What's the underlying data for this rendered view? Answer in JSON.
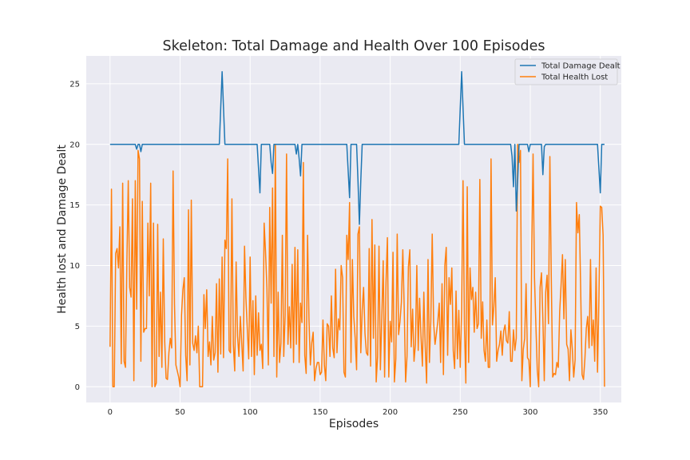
{
  "chart_data": {
    "type": "line",
    "title": "Skeleton: Total Damage and Health Over 100 Episodes",
    "xlabel": "Episodes",
    "ylabel": "Health lost and Damage Dealt",
    "xlim": [
      -17,
      365
    ],
    "ylim": [
      -1.3,
      27.3
    ],
    "xticks": [
      0,
      50,
      100,
      150,
      200,
      250,
      300,
      350
    ],
    "yticks": [
      0,
      5,
      10,
      15,
      20,
      25
    ],
    "grid": true,
    "legend_position": "top-right",
    "series": [
      {
        "name": "Total Damage Dealt",
        "color": "#1f77b4",
        "x": [
          0,
          18,
          19,
          20,
          21,
          22,
          23,
          78,
          79,
          80,
          81,
          82,
          105,
          106,
          107,
          108,
          114,
          115,
          116,
          117,
          118,
          132,
          133,
          134,
          135,
          136,
          137,
          169,
          170,
          171,
          172,
          176,
          177,
          178,
          179,
          180,
          249,
          250,
          251,
          252,
          253,
          286,
          287,
          288,
          289,
          290,
          291,
          292,
          298,
          299,
          300,
          301,
          308,
          309,
          310,
          311,
          348,
          349,
          350,
          351,
          353
        ],
        "y": [
          20,
          20,
          19.6,
          20,
          20,
          19.4,
          20,
          20,
          23,
          26,
          23,
          20,
          20,
          18,
          16,
          20,
          20,
          18.5,
          17.6,
          20,
          20,
          20,
          19.2,
          20,
          18.8,
          17.4,
          20,
          20,
          17.8,
          15.6,
          20,
          20,
          17,
          13.4,
          17,
          20,
          20,
          23,
          26,
          23,
          20,
          20,
          19,
          16.5,
          20,
          14.5,
          17,
          20,
          20,
          19.4,
          20,
          20,
          20,
          17.5,
          19.8,
          20,
          20,
          18,
          16,
          20,
          20
        ]
      },
      {
        "name": "Total Health Lost",
        "color": "#ff7f0e",
        "x": [
          0,
          1,
          2,
          3,
          4,
          5,
          6,
          7,
          8,
          9,
          10,
          11,
          12,
          13,
          14,
          15,
          16,
          17,
          18,
          19,
          20,
          21,
          22,
          23,
          24,
          25,
          26,
          27,
          28,
          29,
          30,
          31,
          32,
          33,
          34,
          35,
          36,
          37,
          38,
          39,
          40,
          41,
          42,
          43,
          44,
          45,
          46,
          47,
          48,
          49,
          50,
          51,
          52,
          53,
          54,
          55,
          56,
          57,
          58,
          59,
          60,
          61,
          62,
          63,
          64,
          65,
          66,
          67,
          68,
          69,
          70,
          71,
          72,
          73,
          74,
          75,
          76,
          77,
          78,
          79,
          80,
          81,
          82,
          83,
          84,
          85,
          86,
          87,
          88,
          89,
          90,
          91,
          92,
          93,
          94,
          95,
          96,
          97,
          98,
          99,
          100,
          101,
          102,
          103,
          104,
          105,
          106,
          107,
          108,
          109,
          110,
          111,
          112,
          113,
          114,
          115,
          116,
          117,
          118,
          119,
          120,
          121,
          122,
          123,
          124,
          125,
          126,
          127,
          128,
          129,
          130,
          131,
          132,
          133,
          134,
          135,
          136,
          137,
          138,
          139,
          140,
          141,
          142,
          143,
          144,
          145,
          146,
          147,
          148,
          149,
          150,
          151,
          152,
          153,
          154,
          155,
          156,
          157,
          158,
          159,
          160,
          161,
          162,
          163,
          164,
          165,
          166,
          167,
          168,
          169,
          170,
          171,
          172,
          173,
          174,
          175,
          176,
          177,
          178,
          179,
          180,
          181,
          182,
          183,
          184,
          185,
          186,
          187,
          188,
          189,
          190,
          191,
          192,
          193,
          194,
          195,
          196,
          197,
          198,
          199,
          200,
          201,
          202,
          203,
          204,
          205,
          206,
          207,
          208,
          209,
          210,
          211,
          212,
          213,
          214,
          215,
          216,
          217,
          218,
          219,
          220,
          221,
          222,
          223,
          224,
          225,
          226,
          227,
          228,
          229,
          230,
          231,
          232,
          233,
          234,
          235,
          236,
          237,
          238,
          239,
          240,
          241,
          242,
          243,
          244,
          245,
          246,
          247,
          248,
          249,
          250,
          251,
          252,
          253,
          254,
          255,
          256,
          257,
          258,
          259,
          260,
          261,
          262,
          263,
          264,
          265,
          266,
          267,
          268,
          269,
          270,
          271,
          272,
          273,
          274,
          275,
          276,
          277,
          278,
          279,
          280,
          281,
          282,
          283,
          284,
          285,
          286,
          287,
          288,
          289,
          290,
          291,
          292,
          293,
          294,
          295,
          296,
          297,
          298,
          299,
          300,
          301,
          302,
          303,
          304,
          305,
          306,
          307,
          308,
          309,
          310,
          311,
          312,
          313,
          314,
          315,
          316,
          317,
          318,
          319,
          320,
          321,
          322,
          323,
          324,
          325,
          326,
          327,
          328,
          329,
          330,
          331,
          332,
          333,
          334,
          335,
          336,
          337,
          338,
          339,
          340,
          341,
          342,
          343,
          344,
          345,
          346,
          347,
          348,
          349,
          350,
          351,
          352,
          353
        ],
        "y": [
          3.3,
          16.3,
          0,
          0,
          11,
          11.4,
          9.8,
          13.2,
          1.9,
          16.8,
          2.1,
          1.6,
          10.2,
          17,
          8.2,
          7.4,
          15.5,
          0.5,
          17,
          6.4,
          19.5,
          18.8,
          2.1,
          15.3,
          4.5,
          4.8,
          4.8,
          13.5,
          7.5,
          16.8,
          0,
          13.5,
          0,
          0.3,
          13.4,
          2.5,
          7.8,
          1.6,
          12.2,
          3.8,
          0.7,
          0.6,
          2.8,
          4,
          3.2,
          17.8,
          6.8,
          1.8,
          1.3,
          0.8,
          0,
          5.9,
          8,
          9,
          2.6,
          0.5,
          14.6,
          1.8,
          15.4,
          3.6,
          3,
          4.2,
          2.8,
          5,
          0,
          0,
          0,
          7.6,
          4.8,
          8,
          2.5,
          3.7,
          1.8,
          5.8,
          2.2,
          2.8,
          8.5,
          1.2,
          8.9,
          2.7,
          10.7,
          2.4,
          12.1,
          11.4,
          18.8,
          3,
          2.8,
          15.5,
          3.5,
          1.3,
          10.3,
          4.2,
          2.5,
          5.8,
          3.6,
          1.3,
          11.6,
          7.3,
          4.7,
          2.3,
          10.7,
          2.5,
          7.1,
          1,
          7.5,
          2.6,
          6.1,
          3,
          3.5,
          1.5,
          13.5,
          11.1,
          8.1,
          1.8,
          14.8,
          6.9,
          16.4,
          2.5,
          20,
          0.8,
          7.8,
          2,
          3.6,
          12.5,
          2.5,
          5.9,
          19.2,
          3.5,
          6.6,
          3.2,
          10.1,
          2,
          11.5,
          3.5,
          11.3,
          2,
          6.9,
          5.3,
          18.5,
          2.6,
          1.1,
          12.5,
          5.6,
          1.8,
          3.6,
          4.5,
          0.5,
          1.5,
          2,
          2,
          1,
          1.2,
          5.5,
          1.8,
          0.5,
          5.2,
          5,
          2.5,
          7.5,
          3.2,
          2.4,
          9.7,
          2.8,
          5.6,
          4.7,
          10,
          9,
          1.2,
          0.8,
          12.5,
          10.5,
          15.2,
          2,
          10.5,
          5.8,
          4,
          1.4,
          12.6,
          13.2,
          2.8,
          6.3,
          8.2,
          4.4,
          2.8,
          2.6,
          11.4,
          1.7,
          13.8,
          4,
          11.7,
          0.4,
          2.5,
          11.6,
          1.4,
          5.7,
          10.4,
          0.8,
          8.6,
          12.3,
          0.8,
          5.4,
          3.7,
          11.1,
          0.4,
          2.3,
          12.6,
          4.3,
          5.4,
          7,
          11.3,
          6.5,
          0.4,
          2.5,
          9.9,
          11.3,
          3.3,
          6.4,
          2.1,
          3.5,
          10,
          3,
          7.3,
          4.1,
          1.7,
          7.8,
          3.3,
          0.3,
          10.5,
          2,
          5.5,
          12.6,
          5.3,
          3.5,
          4.4,
          5.4,
          6.9,
          2,
          8.5,
          1,
          10,
          11.5,
          2.6,
          9,
          6.8,
          9.8,
          3,
          1.5,
          7.9,
          2.3,
          6.3,
          1.6,
          6.4,
          17,
          5,
          0.3,
          16.5,
          2,
          9.8,
          7.2,
          8.2,
          4.5,
          7.8,
          4.8,
          5.2,
          17.1,
          4,
          7,
          3,
          2.1,
          5.5,
          1.6,
          1.6,
          18.8,
          5.1,
          6.6,
          9,
          2.1,
          3,
          3.5,
          4.6,
          2.6,
          4.6,
          5.1,
          3.8,
          3.6,
          6.2,
          2.1,
          2.1,
          4.7,
          3,
          4,
          20,
          18.5,
          19.5,
          0.5,
          3.1,
          4,
          8.5,
          2.4,
          2.2,
          0,
          10.8,
          19.2,
          9,
          5.1,
          1.4,
          0,
          8.2,
          9.4,
          5.6,
          0.5,
          7.8,
          9.2,
          5.2,
          19,
          9,
          0.8,
          1.1,
          1,
          2,
          1.6,
          6.2,
          8.4,
          10.9,
          5.6,
          10.5,
          3.5,
          3.1,
          0.5,
          4.7,
          3.1,
          0.8,
          2.2,
          15.2,
          12.7,
          14.2,
          7.9,
          1,
          0.6,
          2.3,
          4.8,
          5.8,
          3.2,
          10.5,
          3.4,
          5.5,
          2.1,
          9.8,
          1.2,
          7.2,
          14.9,
          14.8,
          12.5,
          0
        ]
      }
    ]
  }
}
